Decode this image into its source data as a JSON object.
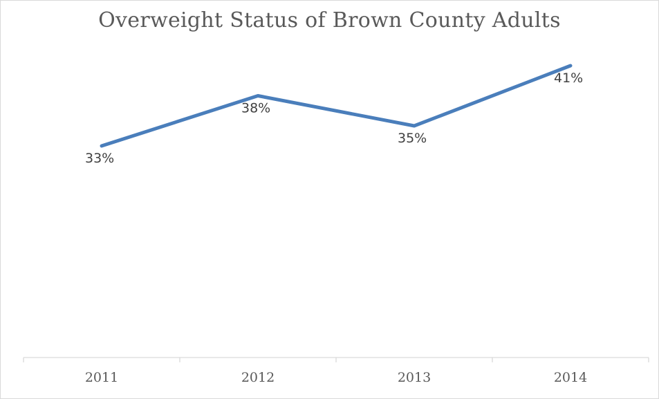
{
  "chart_data": {
    "type": "line",
    "title": "Overweight Status of Brown County Adults",
    "xlabel": "",
    "ylabel": "",
    "categories": [
      "2011",
      "2012",
      "2013",
      "2014"
    ],
    "series": [
      {
        "values": [
          33,
          38,
          35,
          41
        ],
        "data_labels": [
          "33%",
          "38%",
          "35%",
          "41%"
        ],
        "color": "#4a7ebb"
      }
    ],
    "ylim": [
      0,
      45
    ],
    "grid": false,
    "legend": "none",
    "axis_color": "#d9d9d9"
  }
}
